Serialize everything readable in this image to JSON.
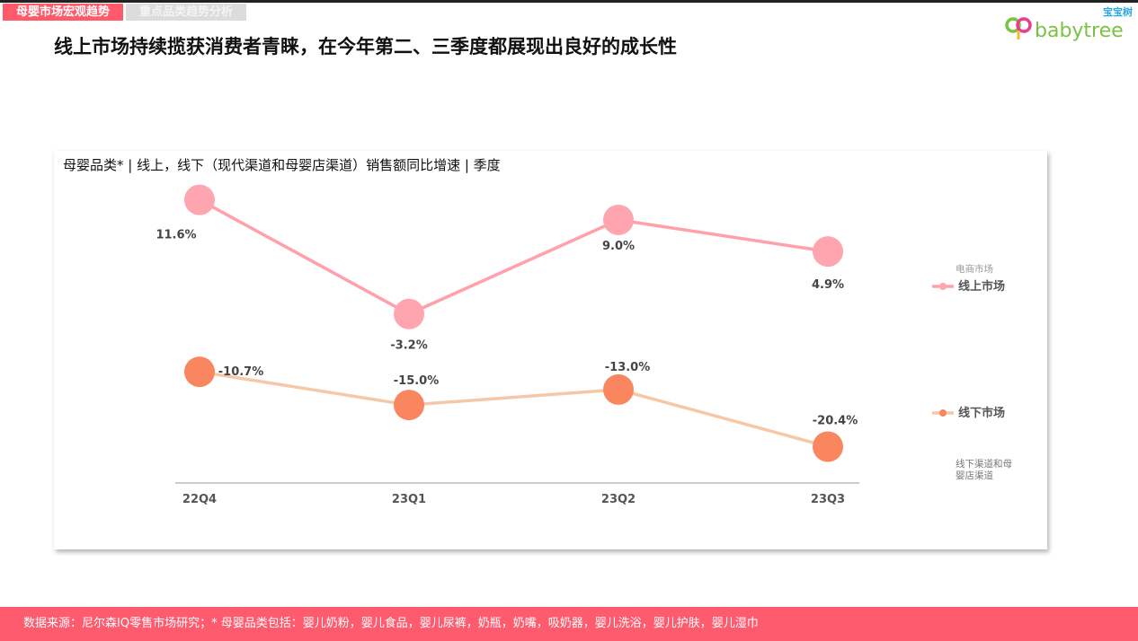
{
  "tabs": [
    {
      "label": "母婴市场宏观趋势",
      "active": true
    },
    {
      "label": "重点品类趋势分析",
      "active": false
    }
  ],
  "title": "线上市场持续揽获消费者青睐，在今年第二、三季度都展现出良好的成长性",
  "logo": {
    "word": "babytree",
    "cn": "宝宝树"
  },
  "footer": "数据来源：尼尔森IQ零售市场研究；* 母婴品类包括：婴儿奶粉，婴儿食品，婴儿尿裤，奶瓶，奶嘴，吸奶器，婴儿洗浴，婴儿护肤，婴儿湿巾",
  "chart_data": {
    "type": "line",
    "title": "母婴品类* | 线上，线下（现代渠道和母婴店渠道）销售额同比增速 | 季度",
    "categories": [
      "22Q4",
      "23Q1",
      "23Q2",
      "23Q3"
    ],
    "series": [
      {
        "name": "线上市场",
        "overlay_label": "电商市场",
        "values": [
          11.6,
          -3.2,
          9.0,
          4.9
        ],
        "labels": [
          "11.6%",
          "-3.2%",
          "9.0%",
          "4.9%"
        ],
        "line_color": "#ffa0ab",
        "marker_color": "#ffa5b0"
      },
      {
        "name": "线下市场",
        "note": "线下渠道和母婴店渠道",
        "values": [
          -10.7,
          -15.0,
          -13.0,
          -20.4
        ],
        "labels": [
          "-10.7%",
          "-15.0%",
          "-13.0%",
          "-20.4%"
        ],
        "line_color": "#f5c8a8",
        "marker_color": "#fa8660"
      }
    ],
    "ylim": [
      -25,
      14
    ],
    "grid": false,
    "legend": "right"
  }
}
